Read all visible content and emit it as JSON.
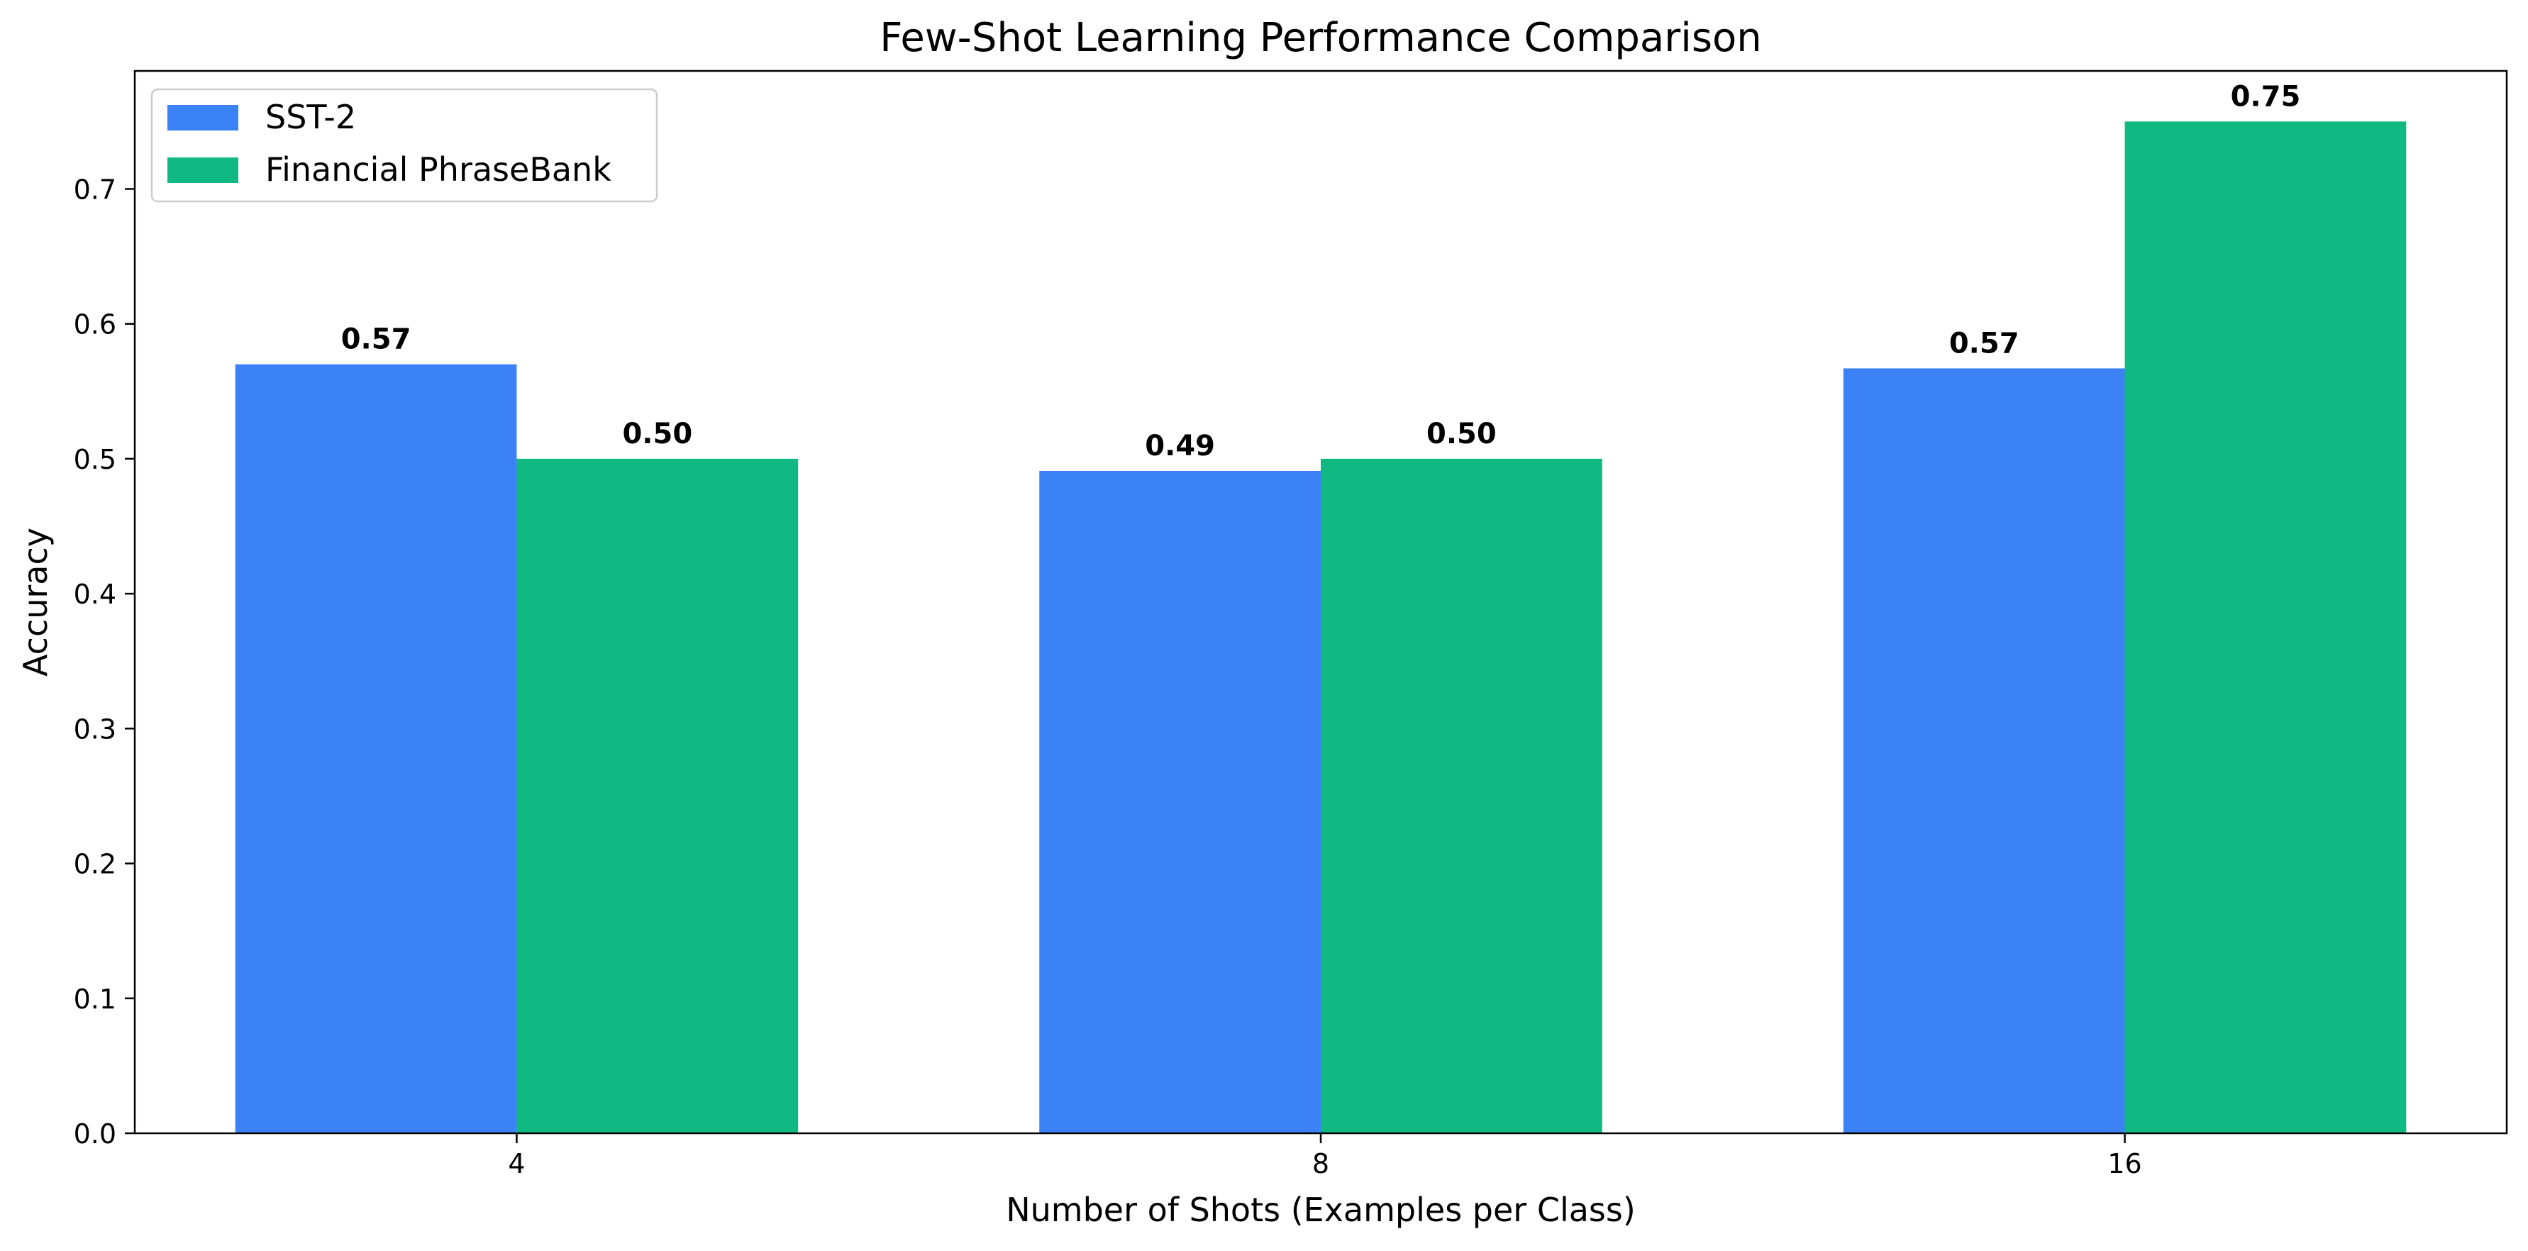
{
  "chart_data": {
    "type": "bar",
    "title": "Few-Shot Learning Performance Comparison",
    "xlabel": "Number of Shots (Examples per Class)",
    "ylabel": "Accuracy",
    "categories": [
      "4",
      "8",
      "16"
    ],
    "series": [
      {
        "name": "SST-2",
        "color": "#3b82f6",
        "values": [
          0.57,
          0.491,
          0.567
        ],
        "labels": [
          "0.57",
          "0.49",
          "0.57"
        ]
      },
      {
        "name": "Financial PhraseBank",
        "color": "#10b981",
        "values": [
          0.5,
          0.5,
          0.75
        ],
        "labels": [
          "0.50",
          "0.50",
          "0.75"
        ]
      }
    ],
    "ylim": [
      0,
      0.7875
    ],
    "yticks": [
      0.0,
      0.1,
      0.2,
      0.3,
      0.4,
      0.5,
      0.6,
      0.7
    ],
    "ytick_labels": [
      "0.0",
      "0.1",
      "0.2",
      "0.3",
      "0.4",
      "0.5",
      "0.6",
      "0.7"
    ],
    "grid": false,
    "legend_position": "top-left"
  }
}
